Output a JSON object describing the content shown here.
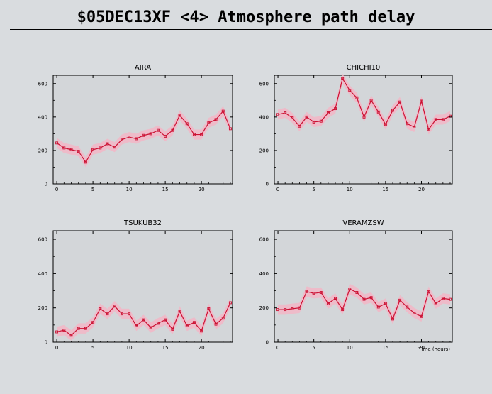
{
  "header": {
    "title": "$05DEC13XF <4>  Atmosphere path delay"
  },
  "colors": {
    "background": "#d9dcdf",
    "plot_area": "#d3d6d9",
    "series_line": "#cc1133",
    "uncertainty_band": "#f2b6c6"
  },
  "chart_data": [
    {
      "type": "line",
      "title": "AIRA",
      "xlabel": "",
      "ylabel": "",
      "xlim": [
        -0.5,
        24.3
      ],
      "ylim": [
        0,
        650
      ],
      "xticks": [
        0,
        5,
        10,
        15,
        20
      ],
      "yticks": [
        0,
        200,
        400,
        600
      ],
      "x": [
        0,
        1,
        2,
        3,
        4,
        5,
        6,
        7,
        8,
        9,
        10,
        11,
        12,
        13,
        14,
        15,
        16,
        17,
        18,
        19,
        20,
        21,
        22,
        23,
        24
      ],
      "y": [
        245,
        215,
        205,
        195,
        130,
        205,
        215,
        240,
        220,
        265,
        280,
        270,
        290,
        300,
        320,
        285,
        320,
        410,
        360,
        295,
        295,
        365,
        385,
        435,
        330
      ],
      "band_halfwidth": 30,
      "grid": false
    },
    {
      "type": "line",
      "title": "CHICHI10",
      "xlabel": "",
      "ylabel": "",
      "xlim": [
        -0.5,
        24.3
      ],
      "ylim": [
        0,
        650
      ],
      "xticks": [
        0,
        5,
        10,
        15,
        20
      ],
      "yticks": [
        0,
        200,
        400,
        600
      ],
      "x": [
        0,
        1,
        2,
        3,
        4,
        5,
        6,
        7,
        8,
        9,
        10,
        11,
        12,
        13,
        14,
        15,
        16,
        17,
        18,
        19,
        20,
        21,
        22,
        23,
        24
      ],
      "y": [
        415,
        425,
        395,
        345,
        400,
        370,
        375,
        425,
        450,
        630,
        560,
        515,
        400,
        500,
        430,
        355,
        440,
        490,
        360,
        340,
        495,
        325,
        385,
        385,
        405
      ],
      "band_halfwidth": 30,
      "grid": false
    },
    {
      "type": "line",
      "title": "TSUKUB32",
      "xlabel": "",
      "ylabel": "",
      "xlim": [
        -0.5,
        24.3
      ],
      "ylim": [
        0,
        650
      ],
      "xticks": [
        0,
        5,
        10,
        15,
        20
      ],
      "yticks": [
        0,
        200,
        400,
        600
      ],
      "x": [
        0,
        1,
        2,
        3,
        4,
        5,
        6,
        7,
        8,
        9,
        10,
        11,
        12,
        13,
        14,
        15,
        16,
        17,
        18,
        19,
        20,
        21,
        22,
        23,
        24
      ],
      "y": [
        60,
        70,
        40,
        80,
        80,
        115,
        195,
        165,
        210,
        165,
        165,
        95,
        130,
        85,
        110,
        130,
        75,
        180,
        95,
        115,
        65,
        195,
        105,
        140,
        230
      ],
      "band_halfwidth": 30,
      "grid": false
    },
    {
      "type": "line",
      "title": "VERAMZSW",
      "xlabel": "Time (hours)",
      "ylabel": "",
      "xlim": [
        -0.5,
        24.3
      ],
      "ylim": [
        0,
        650
      ],
      "xticks": [
        0,
        5,
        10,
        15,
        20
      ],
      "yticks": [
        0,
        200,
        400,
        600
      ],
      "x": [
        0,
        1,
        2,
        3,
        4,
        5,
        6,
        7,
        8,
        9,
        10,
        11,
        12,
        13,
        14,
        15,
        16,
        17,
        18,
        19,
        20,
        21,
        22,
        23,
        24
      ],
      "y": [
        190,
        190,
        195,
        200,
        295,
        285,
        290,
        225,
        255,
        190,
        310,
        290,
        250,
        260,
        205,
        225,
        135,
        245,
        205,
        170,
        150,
        295,
        225,
        255,
        250
      ],
      "band_halfwidth": 30,
      "grid": false
    }
  ]
}
